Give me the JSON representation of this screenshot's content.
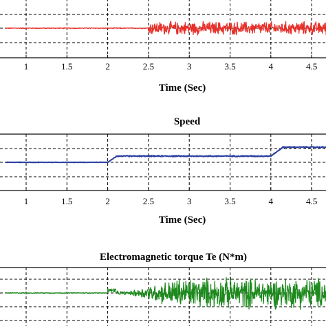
{
  "chart_data": [
    {
      "type": "line",
      "title": "",
      "xlabel": "Time (Sec)",
      "ylabel": "",
      "xlim": [
        0.75,
        4.75
      ],
      "xticks": [
        "1",
        "1.5",
        "2",
        "2.5",
        "3",
        "3.5",
        "4",
        "4.5"
      ],
      "grid": "dashed",
      "series": [
        {
          "color": "#e8302a",
          "segments": [
            {
              "x_start": 0.75,
              "x_end": 2.5,
              "baseline": 0.0,
              "ripple": 0.04
            },
            {
              "x_start": 2.5,
              "x_end": 4.75,
              "baseline": 0.0,
              "ripple": 0.55
            }
          ]
        }
      ]
    },
    {
      "type": "line",
      "title": "Speed",
      "xlabel": "Time (Sec)",
      "ylabel": "",
      "xlim": [
        0.75,
        4.75
      ],
      "xticks": [
        "1",
        "1.5",
        "2",
        "2.5",
        "3",
        "3.5",
        "4",
        "4.5"
      ],
      "grid": "dashed",
      "series": [
        {
          "color": "#2b3fa0",
          "segments": [
            {
              "x_start": 0.75,
              "x_end": 2.0,
              "baseline": 0.0,
              "ripple": 0.02
            },
            {
              "x_start": 2.0,
              "x_end": 2.1,
              "baseline_from": 0.0,
              "baseline_to": 0.4,
              "ripple": 0.02
            },
            {
              "x_start": 2.1,
              "x_end": 4.0,
              "baseline": 0.45,
              "ripple": 0.05
            },
            {
              "x_start": 4.0,
              "x_end": 4.15,
              "baseline_from": 0.45,
              "baseline_to": 1.1,
              "ripple": 0.03
            },
            {
              "x_start": 4.15,
              "x_end": 4.75,
              "baseline": 1.1,
              "ripple": 0.05
            }
          ]
        }
      ]
    },
    {
      "type": "line",
      "title": "Electromagnetic torque Te (N*m)",
      "xlabel": "",
      "ylabel": "",
      "xlim": [
        0.75,
        4.75
      ],
      "xticks": [],
      "grid": "dashed",
      "series": [
        {
          "color": "#1e8a1e",
          "segments": [
            {
              "x_start": 0.75,
              "x_end": 2.0,
              "baseline": 0.0,
              "ripple": 0.03
            },
            {
              "x_start": 2.0,
              "x_end": 2.1,
              "baseline": 0.15,
              "ripple": 0.15
            },
            {
              "x_start": 2.1,
              "x_end": 2.3,
              "baseline": 0.0,
              "ripple": 0.12
            },
            {
              "x_start": 2.3,
              "x_end": 2.8,
              "baseline": 0.0,
              "ripple_from": 0.2,
              "ripple_to": 0.9
            },
            {
              "x_start": 2.8,
              "x_end": 4.75,
              "baseline": 0.0,
              "ripple": 1.0
            }
          ]
        }
      ]
    }
  ]
}
